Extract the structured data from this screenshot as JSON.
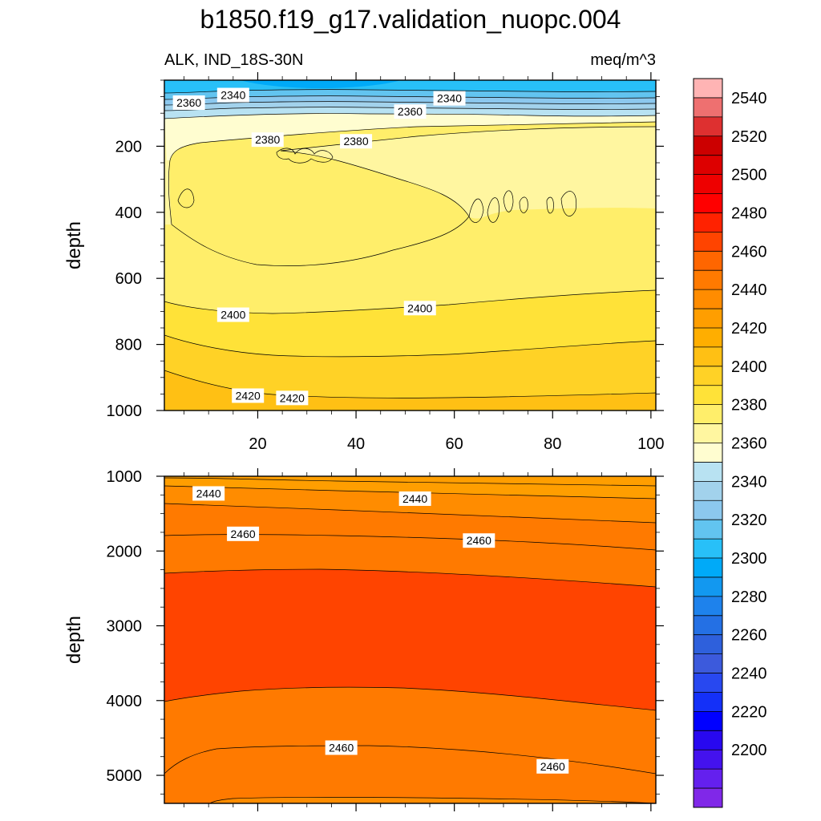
{
  "chart_data": {
    "type": "contour",
    "title": "b1850.f19_g17.validation_nuopc.004",
    "panels": [
      {
        "name": "upper-ocean",
        "left_label": "ALK, IND_18S-30N",
        "right_label": "meq/m^3",
        "ylabel": "depth",
        "xlim": [
          1,
          101
        ],
        "ylim": [
          0,
          1000
        ],
        "y_reversed": true,
        "xticks": [
          20,
          40,
          60,
          80,
          100
        ],
        "yticks": [
          200,
          400,
          600,
          800,
          1000
        ],
        "contour_labels": [
          {
            "text": "2360",
            "x": 6,
            "y": 68
          },
          {
            "text": "2340",
            "x": 15,
            "y": 45
          },
          {
            "text": "2380",
            "x": 22,
            "y": 180
          },
          {
            "text": "2380",
            "x": 40,
            "y": 185
          },
          {
            "text": "2360",
            "x": 51,
            "y": 95
          },
          {
            "text": "2340",
            "x": 59,
            "y": 55
          },
          {
            "text": "2400",
            "x": 15,
            "y": 710
          },
          {
            "text": "2400",
            "x": 53,
            "y": 690
          },
          {
            "text": "2420",
            "x": 18,
            "y": 955
          },
          {
            "text": "2420",
            "x": 27,
            "y": 962
          }
        ]
      },
      {
        "name": "deep-ocean",
        "ylabel": "depth",
        "xlim": [
          1,
          101
        ],
        "ylim": [
          1000,
          5375
        ],
        "y_reversed": true,
        "xticks": [
          20,
          40,
          60,
          80,
          100
        ],
        "yticks": [
          1000,
          2000,
          3000,
          4000,
          5000
        ],
        "contour_labels": [
          {
            "text": "2440",
            "x": 10,
            "y": 1230
          },
          {
            "text": "2440",
            "x": 52,
            "y": 1300
          },
          {
            "text": "2460",
            "x": 17,
            "y": 1770
          },
          {
            "text": "2460",
            "x": 65,
            "y": 1860
          },
          {
            "text": "2460",
            "x": 37,
            "y": 4630
          },
          {
            "text": "2460",
            "x": 80,
            "y": 4880
          }
        ]
      }
    ],
    "colorbar": {
      "labels": [
        "2540",
        "2520",
        "2500",
        "2480",
        "2460",
        "2440",
        "2420",
        "2400",
        "2380",
        "2360",
        "2340",
        "2320",
        "2300",
        "2280",
        "2260",
        "2240",
        "2220",
        "2200"
      ],
      "colors": [
        "#FFB4B4",
        "#EE7070",
        "#DE3030",
        "#CC0000",
        "#DD0000",
        "#EE0000",
        "#FF0000",
        "#FF2200",
        "#FF4400",
        "#FF6600",
        "#FF7A00",
        "#FF8C00",
        "#FF9E00",
        "#FFAE00",
        "#FFC014",
        "#FFD226",
        "#FFE238",
        "#FFEE6A",
        "#FFF6A0",
        "#FFFDD0",
        "#B8E2F2",
        "#A2D2EC",
        "#8CC8EE",
        "#62C4F0",
        "#28C0F8",
        "#00AAF8",
        "#1298F0",
        "#1E82EC",
        "#2470E4",
        "#2E60DC",
        "#3C5ADC",
        "#2848F0",
        "#1430F8",
        "#0000FF",
        "#2808F0",
        "#4412EE",
        "#6420EE",
        "#8028E8"
      ],
      "level_step": 10,
      "top_level": 2550
    }
  }
}
